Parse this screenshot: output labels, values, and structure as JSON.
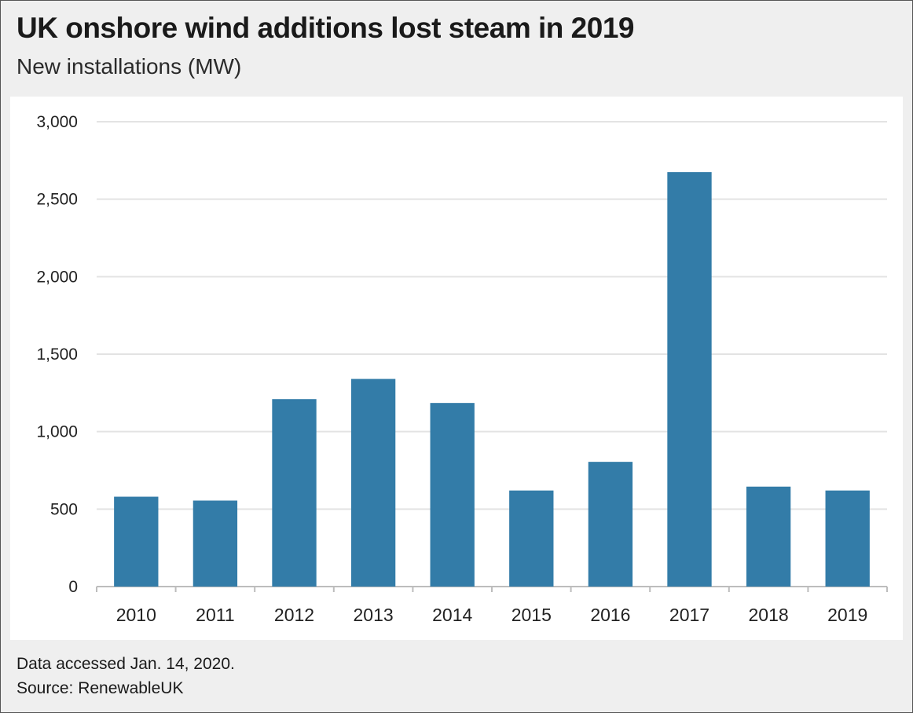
{
  "title": "UK onshore wind additions lost steam in 2019",
  "subtitle": "New installations (MW)",
  "footer": {
    "note": "Data accessed Jan. 14, 2020.",
    "source": "Source: RenewableUK"
  },
  "colors": {
    "bar": "#337ca8",
    "grid": "#e3e3e3",
    "axis": "#bdbdbd"
  },
  "chart_data": {
    "type": "bar",
    "title": "UK onshore wind additions lost steam in 2019",
    "subtitle": "New installations (MW)",
    "xlabel": "",
    "ylabel": "",
    "categories": [
      "2010",
      "2011",
      "2012",
      "2013",
      "2014",
      "2015",
      "2016",
      "2017",
      "2018",
      "2019"
    ],
    "values": [
      580,
      555,
      1210,
      1340,
      1185,
      620,
      805,
      2675,
      645,
      620
    ],
    "ylim": [
      0,
      3000
    ],
    "yticks": [
      0,
      500,
      1000,
      1500,
      2000,
      2500,
      3000
    ],
    "ytick_labels": [
      "0",
      "500",
      "1,000",
      "1,500",
      "2,000",
      "2,500",
      "3,000"
    ],
    "grid": true,
    "legend": "none"
  }
}
